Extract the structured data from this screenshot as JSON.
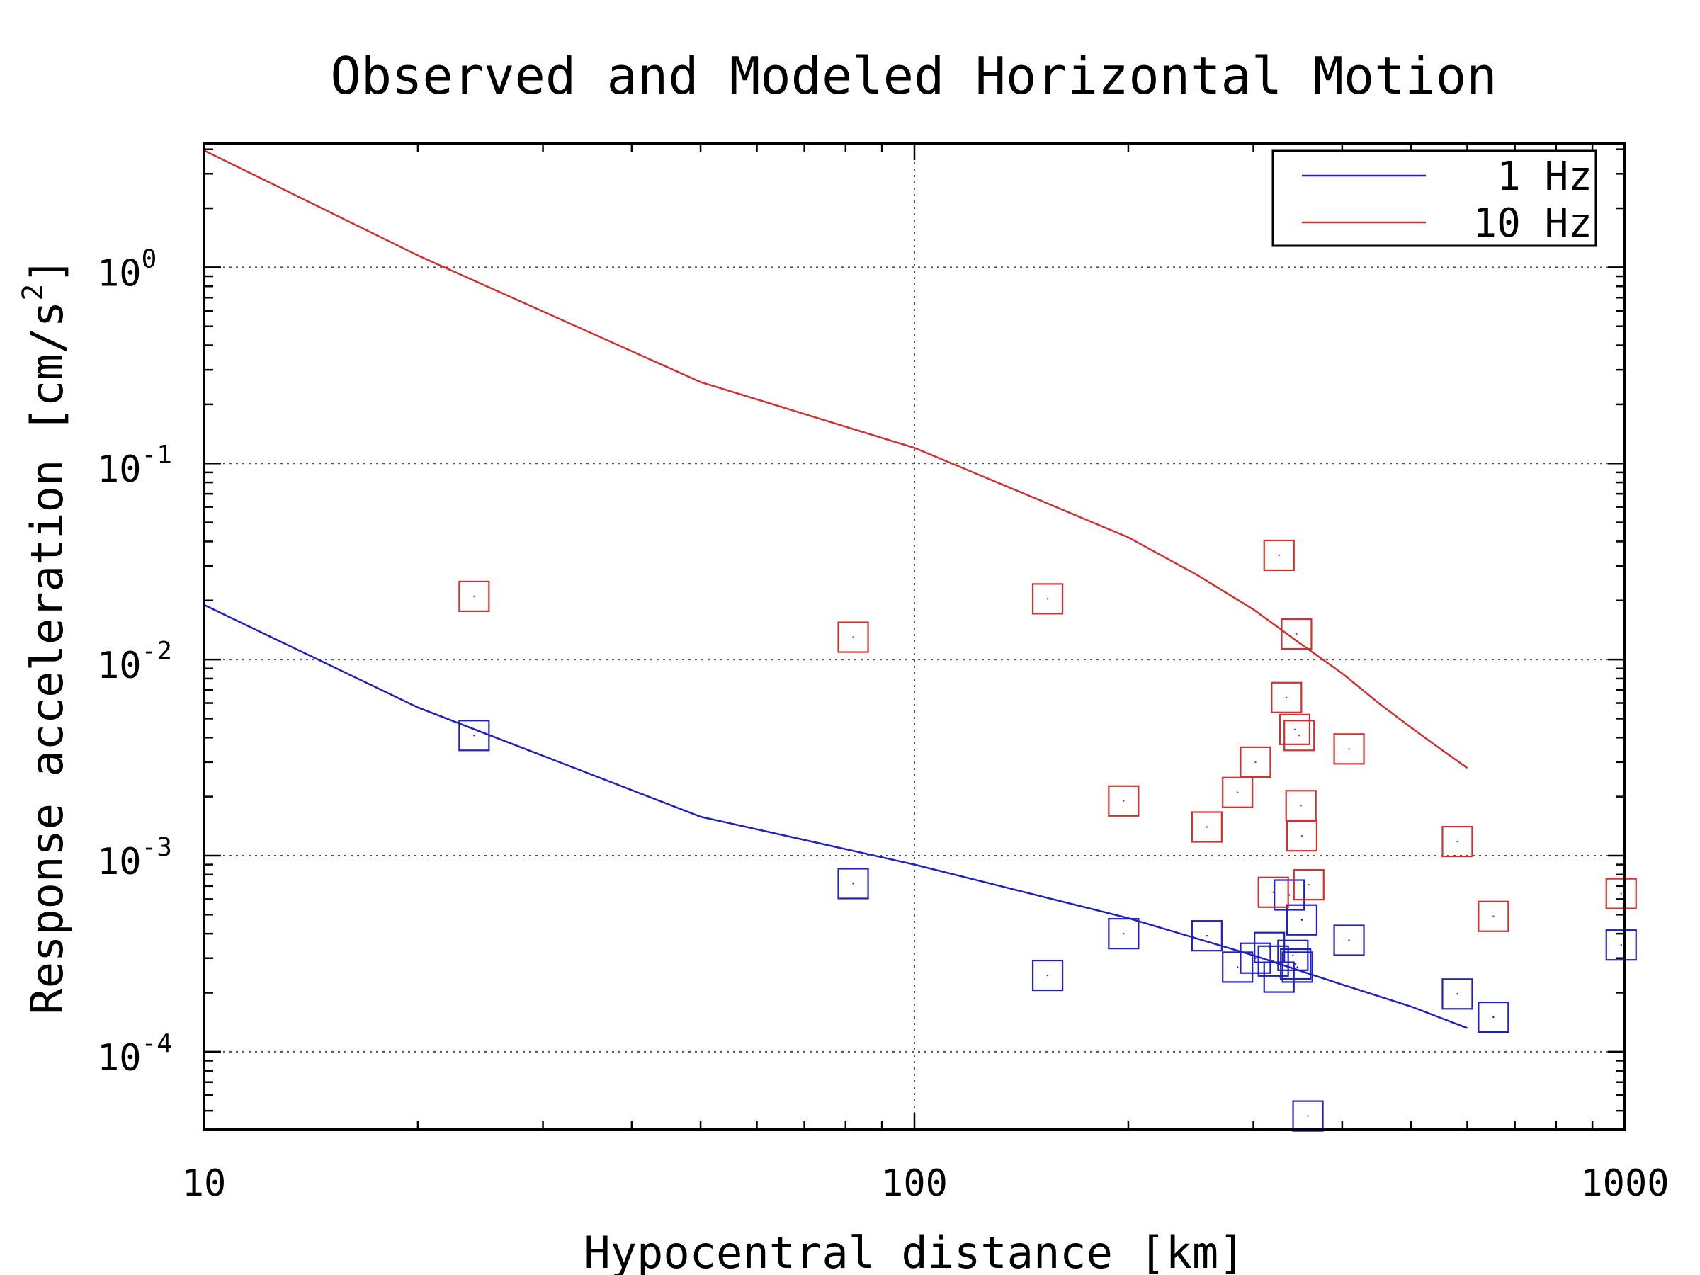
{
  "chart_data": {
    "type": "scatter",
    "title": "Observed and Modeled Horizontal Motion",
    "xlabel": "Hypocentral distance [km]",
    "ylabel": "Response acceleration [cm/s",
    "ylabel_sup": "2",
    "ylabel_end": "]",
    "x_scale": "log",
    "y_scale": "log",
    "xlim": [
      10,
      1000
    ],
    "ylim": [
      4e-05,
      4.3
    ],
    "x_ticks": [
      {
        "value": 10,
        "label": "10"
      },
      {
        "value": 100,
        "label": "100"
      },
      {
        "value": 1000,
        "label": "1000"
      }
    ],
    "y_ticks": [
      {
        "value": 0.0001,
        "base": "10",
        "exp": "-4"
      },
      {
        "value": 0.001,
        "base": "10",
        "exp": "-3"
      },
      {
        "value": 0.01,
        "base": "10",
        "exp": "-2"
      },
      {
        "value": 0.1,
        "base": "10",
        "exp": "-1"
      },
      {
        "value": 1,
        "base": "10",
        "exp": "0"
      }
    ],
    "grid": true,
    "legend": {
      "position": "top-right",
      "entries": [
        {
          "label": "1 Hz",
          "color": "#2020c0"
        },
        {
          "label": "10 Hz",
          "color": "#d03030"
        }
      ]
    },
    "series": [
      {
        "name": "1 Hz",
        "kind": "model-line",
        "color": "#2020c0",
        "x": [
          10,
          20,
          50,
          100,
          200,
          300,
          400,
          500,
          600
        ],
        "y": [
          0.019,
          0.0057,
          0.00158,
          0.0009,
          0.00048,
          0.00031,
          0.00022,
          0.00017,
          0.000132
        ]
      },
      {
        "name": "10 Hz",
        "kind": "model-line",
        "color": "#d03030",
        "x": [
          10,
          20,
          50,
          100,
          150,
          200,
          250,
          300,
          350,
          400,
          450,
          500,
          550,
          600
        ],
        "y": [
          3.95,
          1.15,
          0.26,
          0.12,
          0.065,
          0.042,
          0.027,
          0.018,
          0.012,
          0.0085,
          0.006,
          0.0045,
          0.0035,
          0.0028
        ]
      },
      {
        "name": "1 Hz",
        "kind": "observed",
        "color": "#2020c0",
        "x": [
          24,
          82,
          154,
          197,
          258,
          285,
          302,
          316,
          320,
          326,
          337,
          341,
          344,
          346,
          351,
          358,
          409,
          581,
          653,
          988
        ],
        "y": [
          0.0041,
          0.00072,
          0.000245,
          0.0004,
          0.00039,
          0.00027,
          0.0003,
          0.00034,
          0.00029,
          0.00024,
          0.00063,
          0.00031,
          0.00028,
          0.00027,
          0.00047,
          4.7e-05,
          0.00037,
          0.000197,
          0.00015,
          0.00035
        ]
      },
      {
        "name": "10 Hz",
        "kind": "observed",
        "color": "#d03030",
        "x": [
          24,
          82,
          154,
          197,
          258,
          285,
          302,
          320,
          326,
          334,
          343,
          345,
          348,
          350,
          351,
          359,
          409,
          581,
          653,
          988
        ],
        "y": [
          0.021,
          0.013,
          0.0204,
          0.0019,
          0.0014,
          0.0021,
          0.003,
          0.00065,
          0.034,
          0.0064,
          0.0044,
          0.0135,
          0.0041,
          0.0018,
          0.00126,
          0.00071,
          0.0035,
          0.00118,
          0.00049,
          0.00064
        ]
      }
    ]
  }
}
